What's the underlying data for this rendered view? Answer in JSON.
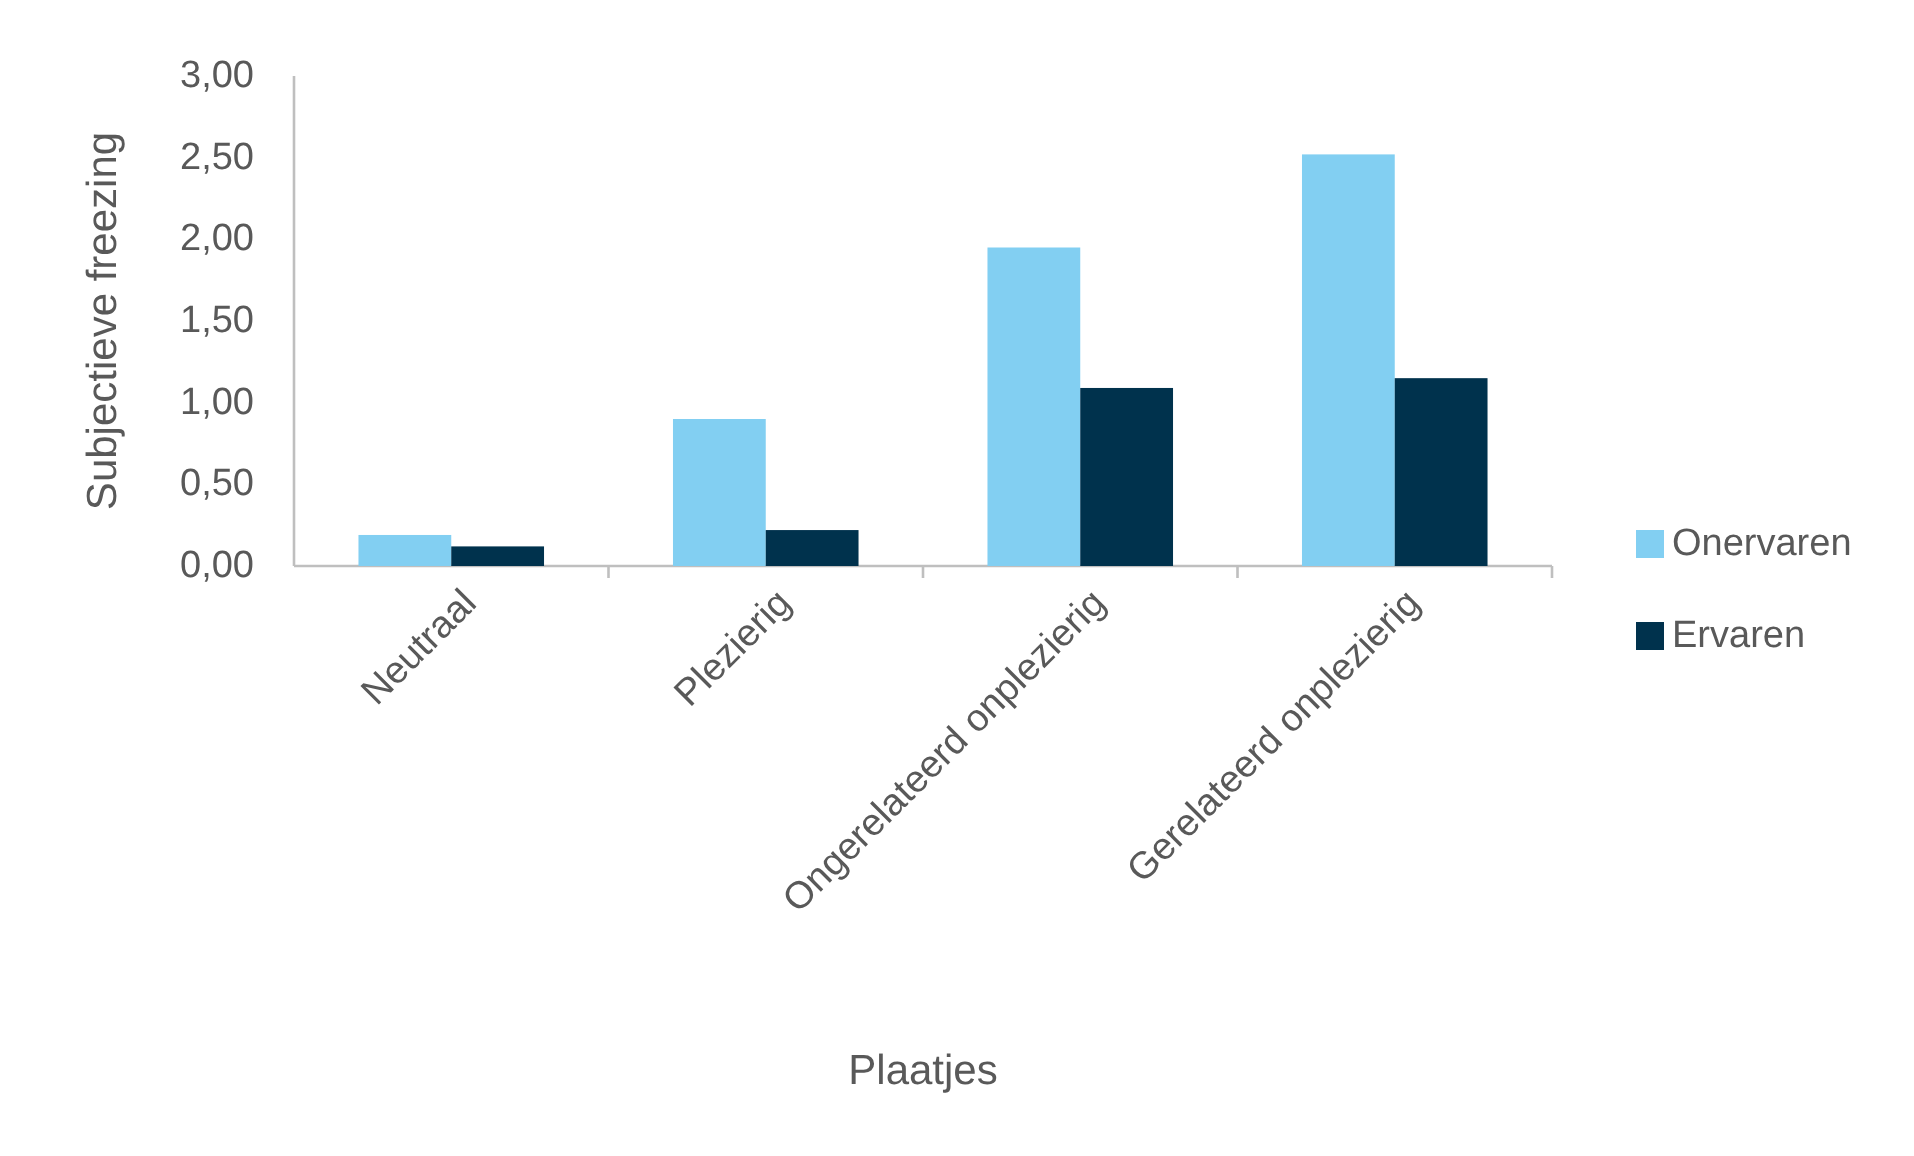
{
  "chart_data": {
    "type": "bar",
    "xlabel": "Plaatjes",
    "ylabel": "Subjectieve freezing",
    "categories": [
      "Neutraal",
      "Plezierig",
      "Ongerelateerd onplezierig",
      "Gerelateerd onplezierig"
    ],
    "series": [
      {
        "name": "Onervaren",
        "color": "#82cff2",
        "values": [
          0.19,
          0.9,
          1.95,
          2.52
        ]
      },
      {
        "name": "Ervaren",
        "color": "#00324d",
        "values": [
          0.12,
          0.22,
          1.09,
          1.15
        ]
      }
    ],
    "ylim": [
      0,
      3
    ],
    "yticks": [
      {
        "value": 0,
        "label": "0,00"
      },
      {
        "value": 0.5,
        "label": "0,50"
      },
      {
        "value": 1,
        "label": "1,00"
      },
      {
        "value": 1.5,
        "label": "1,50"
      },
      {
        "value": 2,
        "label": "2,00"
      },
      {
        "value": 2.5,
        "label": "2,50"
      },
      {
        "value": 3,
        "label": "3,00"
      }
    ],
    "grid": false,
    "legend": "right"
  }
}
